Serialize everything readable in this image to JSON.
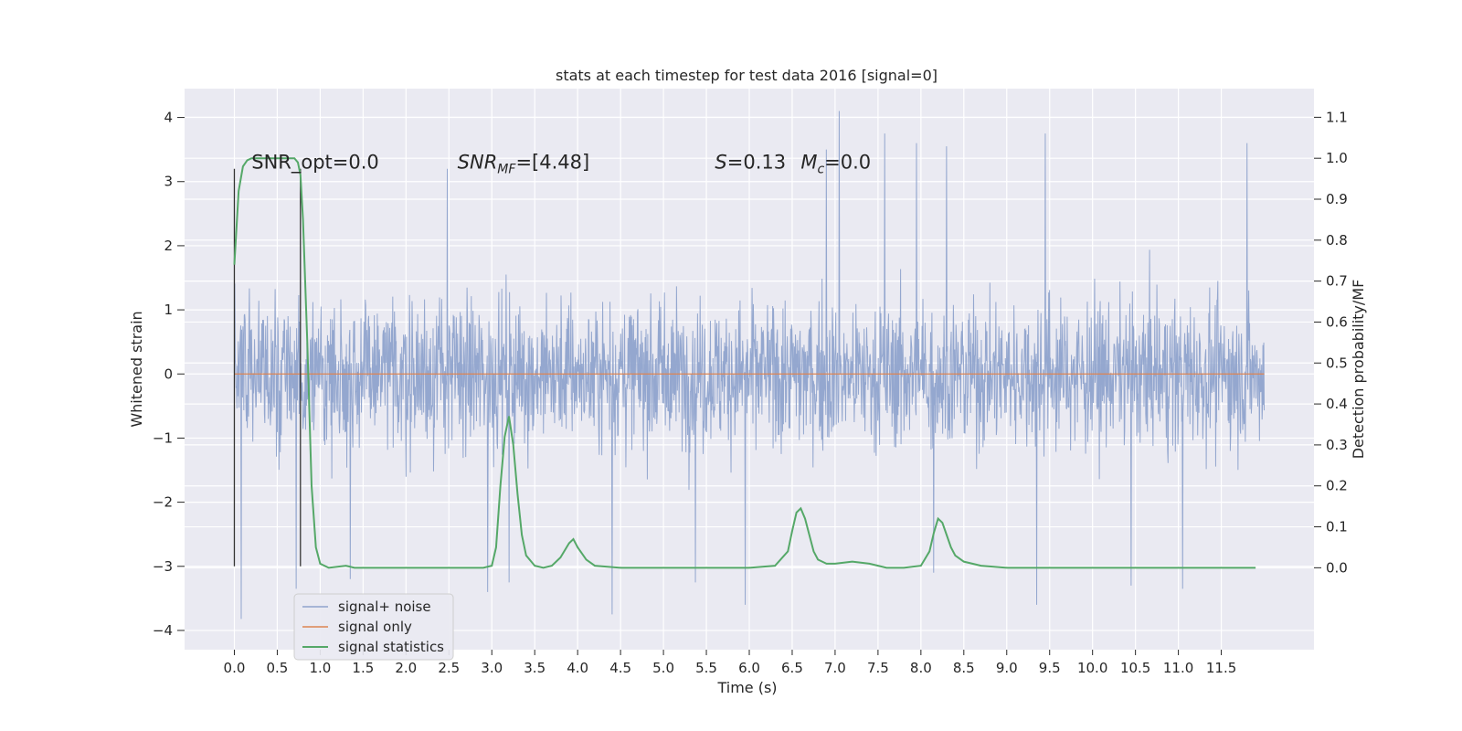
{
  "chart_data": {
    "type": "line",
    "title": "stats at each timestep for test data 2016 [signal=0]",
    "xlabel": "Time (s)",
    "ylabel_left": "Whitened strain",
    "ylabel_right": "Detection probability/MF",
    "xlim": [
      -0.58,
      12.58
    ],
    "ylim_left": [
      -4.3,
      4.45
    ],
    "ylim_right": [
      -0.2,
      1.17
    ],
    "x_ticks": [
      0.0,
      0.5,
      1.0,
      1.5,
      2.0,
      2.5,
      3.0,
      3.5,
      4.0,
      4.5,
      5.0,
      5.5,
      6.0,
      6.5,
      7.0,
      7.5,
      8.0,
      8.5,
      9.0,
      9.5,
      10.0,
      10.5,
      11.0,
      11.5
    ],
    "x_tick_labels": [
      "0.0",
      "0.5",
      "1.0",
      "1.5",
      "2.0",
      "2.5",
      "3.0",
      "3.5",
      "4.0",
      "4.5",
      "5.0",
      "5.5",
      "6.0",
      "6.5",
      "7.0",
      "7.5",
      "8.0",
      "8.5",
      "9.0",
      "9.5",
      "10.0",
      "10.5",
      "11.0",
      "11.5"
    ],
    "y_left_ticks": [
      4,
      3,
      2,
      1,
      0,
      -1,
      -2,
      -3,
      -4
    ],
    "y_left_tick_labels": [
      "4",
      "3",
      "2",
      "1",
      "0",
      "−1",
      "−2",
      "−3",
      "−4"
    ],
    "y_right_ticks": [
      1.1,
      1.0,
      0.9,
      0.8,
      0.7,
      0.6,
      0.5,
      0.4,
      0.3,
      0.2,
      0.1,
      0.0
    ],
    "y_right_tick_labels": [
      "1.1",
      "1.0",
      "0.9",
      "0.8",
      "0.7",
      "0.6",
      "0.5",
      "0.4",
      "0.3",
      "0.2",
      "0.1",
      "0.0"
    ],
    "grid": true,
    "legend_position": "lower-left",
    "colors": {
      "background": "#eaeaf2",
      "grid": "#ffffff",
      "signal_noise": "#8fa3cc",
      "signal_only": "#dd8452",
      "statistics": "#55a868",
      "window_lines": "#333333"
    },
    "series": [
      {
        "name": "signal+ noise",
        "axis": "left",
        "description_range": [
          -3.8,
          4.1
        ],
        "x_range": [
          0.0,
          12.0
        ],
        "peaks": [
          [
            0.08,
            -3.82
          ],
          [
            0.72,
            -3.35
          ],
          [
            1.35,
            -3.2
          ],
          [
            2.48,
            3.2
          ],
          [
            2.95,
            -3.4
          ],
          [
            3.2,
            -3.25
          ],
          [
            4.4,
            -3.75
          ],
          [
            5.37,
            -3.25
          ],
          [
            5.95,
            -3.6
          ],
          [
            6.9,
            3.5
          ],
          [
            7.05,
            4.1
          ],
          [
            7.58,
            3.75
          ],
          [
            7.95,
            3.6
          ],
          [
            8.15,
            -3.1
          ],
          [
            8.3,
            3.55
          ],
          [
            9.45,
            3.75
          ],
          [
            9.35,
            -3.6
          ],
          [
            10.45,
            -3.3
          ],
          [
            11.05,
            -3.35
          ],
          [
            11.8,
            3.6
          ]
        ]
      },
      {
        "name": "signal only",
        "axis": "left",
        "x": [
          0.0,
          12.0
        ],
        "y": [
          0.0,
          0.0
        ]
      },
      {
        "name": "signal statistics",
        "axis": "right",
        "x": [
          0.0,
          0.05,
          0.1,
          0.15,
          0.2,
          0.3,
          0.4,
          0.5,
          0.6,
          0.7,
          0.74,
          0.77,
          0.8,
          0.85,
          0.9,
          0.95,
          1.0,
          1.1,
          1.3,
          1.4,
          1.6,
          2.0,
          2.5,
          2.9,
          3.0,
          3.05,
          3.1,
          3.15,
          3.2,
          3.25,
          3.3,
          3.35,
          3.4,
          3.5,
          3.6,
          3.7,
          3.8,
          3.9,
          3.95,
          4.0,
          4.1,
          4.2,
          4.5,
          5.0,
          5.5,
          6.0,
          6.3,
          6.45,
          6.5,
          6.55,
          6.6,
          6.65,
          6.7,
          6.75,
          6.8,
          6.9,
          7.0,
          7.2,
          7.4,
          7.6,
          7.8,
          8.0,
          8.1,
          8.15,
          8.2,
          8.25,
          8.3,
          8.35,
          8.4,
          8.5,
          8.7,
          9.0,
          9.5,
          10.0,
          10.5,
          11.0,
          11.5,
          11.9
        ],
        "y": [
          0.74,
          0.92,
          0.98,
          0.995,
          1.0,
          1.0,
          1.0,
          1.0,
          1.0,
          1.0,
          0.99,
          0.96,
          0.85,
          0.55,
          0.2,
          0.05,
          0.01,
          0.0,
          0.005,
          0.0,
          0.0,
          0.0,
          0.0,
          0.0,
          0.005,
          0.05,
          0.2,
          0.32,
          0.37,
          0.3,
          0.18,
          0.08,
          0.03,
          0.005,
          0.0,
          0.005,
          0.025,
          0.06,
          0.07,
          0.05,
          0.02,
          0.005,
          0.0,
          0.0,
          0.0,
          0.0,
          0.005,
          0.04,
          0.09,
          0.135,
          0.145,
          0.12,
          0.08,
          0.04,
          0.02,
          0.01,
          0.01,
          0.015,
          0.01,
          0.0,
          0.0,
          0.005,
          0.04,
          0.085,
          0.12,
          0.11,
          0.08,
          0.05,
          0.03,
          0.015,
          0.005,
          0.0,
          0.0,
          0.0,
          0.0,
          0.0,
          0.0,
          0.0
        ]
      }
    ],
    "window_lines": {
      "axis": "left",
      "x": [
        0.0,
        0.77
      ],
      "y": [
        -3.0,
        3.2
      ]
    },
    "annotations": [
      {
        "text": "SNR_opt=0.0",
        "x": 0.2,
        "y": 3.2
      },
      {
        "text": "SNR",
        "sub": "MF",
        "after": "=[4.48]",
        "italic_main": true,
        "x": 2.6,
        "y": 3.2
      },
      {
        "text": "S",
        "after": "=0.13",
        "italic_main": true,
        "x": 5.6,
        "y": 3.2
      },
      {
        "text": "M",
        "sub": "c",
        "after": "=0.0",
        "italic_main": true,
        "x": 6.6,
        "y": 3.2
      }
    ],
    "legend": [
      "signal+ noise",
      "signal only",
      "signal statistics"
    ]
  }
}
